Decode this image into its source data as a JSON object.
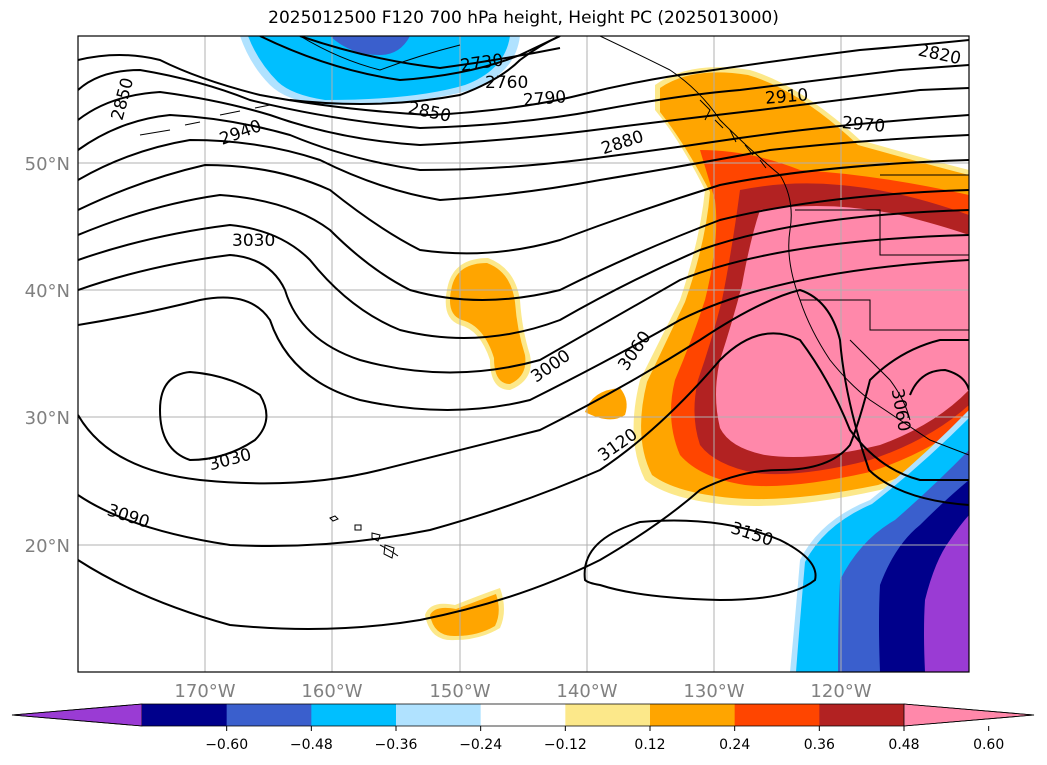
{
  "title": "2025012500 F120 700 hPa height, Height PC (2025013000)",
  "map": {
    "lon_labels": [
      "170°W",
      "160°W",
      "150°W",
      "140°W",
      "130°W",
      "120°W"
    ],
    "lat_labels": [
      "50°N",
      "40°N",
      "30°N",
      "20°N"
    ],
    "gridline_label_color": "#808080",
    "contour_labels": [
      {
        "text": "2730"
      },
      {
        "text": "2760"
      },
      {
        "text": "2790"
      },
      {
        "text": "2820"
      },
      {
        "text": "2850"
      },
      {
        "text": "2850"
      },
      {
        "text": "2880"
      },
      {
        "text": "2910"
      },
      {
        "text": "2940"
      },
      {
        "text": "2970"
      },
      {
        "text": "3000"
      },
      {
        "text": "3030"
      },
      {
        "text": "3030"
      },
      {
        "text": "3060"
      },
      {
        "text": "3060"
      },
      {
        "text": "3090"
      },
      {
        "text": "3120"
      },
      {
        "text": "3150"
      }
    ]
  },
  "colorbar": {
    "ticks": [
      "−0.60",
      "−0.48",
      "−0.36",
      "−0.24",
      "−0.12",
      "0.12",
      "0.24",
      "0.36",
      "0.48",
      "0.60"
    ],
    "colors": [
      "#9a3bd4",
      "#00008b",
      "#3a5fcd",
      "#00bfff",
      "#b0e2ff",
      "#ffffff",
      "#fce88a",
      "#ffa500",
      "#ff4500",
      "#b22222",
      "#ff88aa"
    ]
  }
}
